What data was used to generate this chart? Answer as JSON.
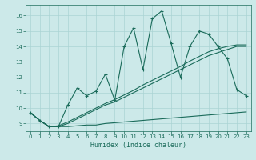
{
  "xlabel": "Humidex (Indice chaleur)",
  "xlim": [
    -0.5,
    23.5
  ],
  "ylim": [
    8.5,
    16.7
  ],
  "yticks": [
    9,
    10,
    11,
    12,
    13,
    14,
    15,
    16
  ],
  "xticks": [
    0,
    1,
    2,
    3,
    4,
    5,
    6,
    7,
    8,
    9,
    10,
    11,
    12,
    13,
    14,
    15,
    16,
    17,
    18,
    19,
    20,
    21,
    22,
    23
  ],
  "bg_color": "#cce9e9",
  "grid_color": "#aad4d4",
  "line_color": "#1a6b5a",
  "x": [
    0,
    1,
    2,
    3,
    4,
    5,
    6,
    7,
    8,
    9,
    10,
    11,
    12,
    13,
    14,
    15,
    16,
    17,
    18,
    19,
    20,
    21,
    22,
    23
  ],
  "y_main": [
    9.7,
    9.2,
    8.8,
    8.8,
    10.2,
    11.3,
    10.8,
    11.1,
    12.2,
    10.5,
    14.0,
    15.2,
    12.5,
    15.8,
    16.3,
    14.2,
    12.0,
    14.0,
    15.0,
    14.8,
    14.0,
    13.2,
    11.2,
    10.8
  ],
  "y_low": [
    9.7,
    9.2,
    8.8,
    8.8,
    8.8,
    8.85,
    8.9,
    8.9,
    9.0,
    9.05,
    9.1,
    9.15,
    9.2,
    9.25,
    9.3,
    9.35,
    9.4,
    9.45,
    9.5,
    9.55,
    9.6,
    9.65,
    9.7,
    9.75
  ],
  "y_trend1": [
    9.7,
    9.2,
    8.8,
    8.8,
    9.0,
    9.3,
    9.6,
    9.9,
    10.2,
    10.4,
    10.7,
    11.0,
    11.3,
    11.6,
    11.9,
    12.2,
    12.5,
    12.8,
    13.1,
    13.4,
    13.6,
    13.8,
    14.0,
    14.0
  ],
  "y_trend2": [
    9.7,
    9.2,
    8.8,
    8.85,
    9.1,
    9.4,
    9.7,
    10.0,
    10.3,
    10.55,
    10.85,
    11.15,
    11.5,
    11.8,
    12.1,
    12.4,
    12.7,
    13.05,
    13.35,
    13.65,
    13.85,
    14.0,
    14.1,
    14.1
  ]
}
